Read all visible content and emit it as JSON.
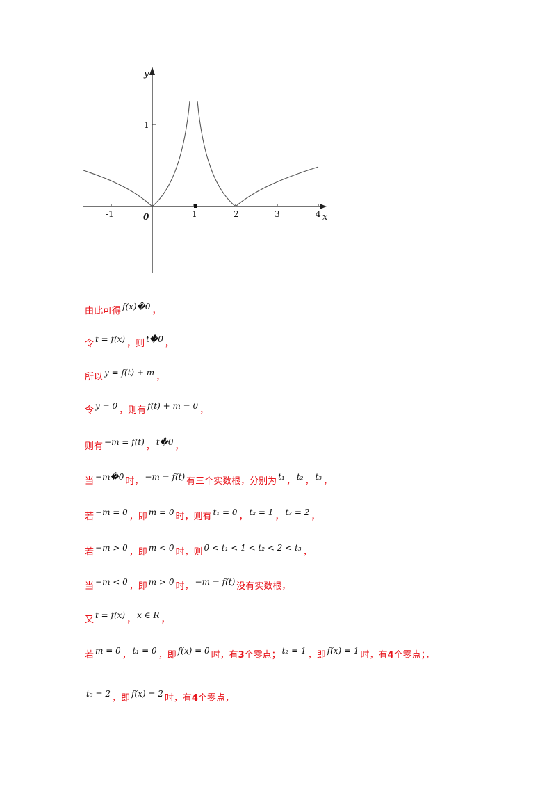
{
  "figure": {
    "x_axis_label": "x",
    "y_axis_label": "y",
    "origin_label": "0",
    "x_tick_labels": [
      "-1",
      "1",
      "2",
      "3",
      "4"
    ],
    "y_tick_labels": [
      "1"
    ],
    "curve_color": "#555555",
    "axis_color": "#222222"
  },
  "lines": [
    [
      {
        "t": "cn",
        "v": "由此可得"
      },
      {
        "t": "math",
        "v": "f(x)�0"
      },
      {
        "t": "cn",
        "v": "，"
      }
    ],
    [
      {
        "t": "cn",
        "v": "令"
      },
      {
        "t": "math",
        "v": "t = f(x)"
      },
      {
        "t": "cn",
        "v": "，则"
      },
      {
        "t": "math",
        "v": "t�0"
      },
      {
        "t": "cn",
        "v": "，"
      }
    ],
    [
      {
        "t": "cn",
        "v": "所以"
      },
      {
        "t": "math",
        "v": "y = f(t) + m"
      },
      {
        "t": "cn",
        "v": "，"
      }
    ],
    [
      {
        "t": "cn",
        "v": "令"
      },
      {
        "t": "math",
        "v": "y = 0"
      },
      {
        "t": "cn",
        "v": "，则有"
      },
      {
        "t": "math",
        "v": "f(t) + m = 0"
      },
      {
        "t": "cn",
        "v": "，"
      }
    ],
    [
      {
        "t": "cn",
        "v": "则有"
      },
      {
        "t": "math",
        "v": "−m = f(t)"
      },
      {
        "t": "cn",
        "v": "，"
      },
      {
        "t": "math",
        "v": "t�0"
      },
      {
        "t": "cn",
        "v": "，"
      }
    ],
    [
      {
        "t": "cn",
        "v": "当"
      },
      {
        "t": "math",
        "v": "−m�0"
      },
      {
        "t": "cn",
        "v": "时，"
      },
      {
        "t": "math",
        "v": "−m = f(t)"
      },
      {
        "t": "cn",
        "v": "有三个实数根，分别为"
      },
      {
        "t": "math",
        "v": "t₁"
      },
      {
        "t": "cn",
        "v": "，"
      },
      {
        "t": "math",
        "v": "t₂"
      },
      {
        "t": "cn",
        "v": "，"
      },
      {
        "t": "math",
        "v": "t₃"
      },
      {
        "t": "cn",
        "v": "，"
      }
    ],
    [
      {
        "t": "cn",
        "v": "若"
      },
      {
        "t": "math",
        "v": "−m = 0"
      },
      {
        "t": "cn",
        "v": "，即"
      },
      {
        "t": "math",
        "v": "m = 0"
      },
      {
        "t": "cn",
        "v": "时，则有"
      },
      {
        "t": "math",
        "v": "t₁ = 0"
      },
      {
        "t": "cn",
        "v": "，"
      },
      {
        "t": "math",
        "v": "t₂ = 1"
      },
      {
        "t": "cn",
        "v": "，"
      },
      {
        "t": "math",
        "v": "t₃ = 2"
      },
      {
        "t": "cn",
        "v": "，"
      }
    ],
    [
      {
        "t": "cn",
        "v": "若"
      },
      {
        "t": "math",
        "v": "−m > 0"
      },
      {
        "t": "cn",
        "v": "，即"
      },
      {
        "t": "math",
        "v": "m < 0"
      },
      {
        "t": "cn",
        "v": "时，则"
      },
      {
        "t": "math",
        "v": "0 < t₁ < 1 < t₂ < 2 < t₃"
      },
      {
        "t": "cn",
        "v": "，"
      }
    ],
    [
      {
        "t": "cn",
        "v": "当"
      },
      {
        "t": "math",
        "v": "−m < 0"
      },
      {
        "t": "cn",
        "v": "，即"
      },
      {
        "t": "math",
        "v": "m > 0"
      },
      {
        "t": "cn",
        "v": "时，"
      },
      {
        "t": "math",
        "v": "−m = f(t)"
      },
      {
        "t": "cn",
        "v": "没有实数根，"
      }
    ],
    [
      {
        "t": "cn",
        "v": "又"
      },
      {
        "t": "math",
        "v": "t = f(x)"
      },
      {
        "t": "cn",
        "v": "，"
      },
      {
        "t": "math",
        "v": "x ∈ R"
      },
      {
        "t": "cn",
        "v": "，"
      }
    ],
    [
      {
        "t": "cn",
        "v": "若"
      },
      {
        "t": "math",
        "v": "m = 0"
      },
      {
        "t": "cn",
        "v": "，"
      },
      {
        "t": "math",
        "v": "t₁ = 0"
      },
      {
        "t": "cn",
        "v": "，即"
      },
      {
        "t": "math",
        "v": "f(x) = 0"
      },
      {
        "t": "cn",
        "v": "时，有 "
      },
      {
        "t": "cnb",
        "v": "3"
      },
      {
        "t": "cn",
        "v": " 个零点；"
      },
      {
        "t": "math",
        "v": "t₂ = 1"
      },
      {
        "t": "cn",
        "v": "，即"
      },
      {
        "t": "math",
        "v": "f(x) = 1"
      },
      {
        "t": "cn",
        "v": "时，有 "
      },
      {
        "t": "cnb",
        "v": "4"
      },
      {
        "t": "cn",
        "v": " 个零点；，"
      }
    ],
    [
      {
        "t": "math",
        "v": "t₃ = 2"
      },
      {
        "t": "cn",
        "v": "，即"
      },
      {
        "t": "math",
        "v": "f(x) = 2"
      },
      {
        "t": "cn",
        "v": "时，有 "
      },
      {
        "t": "cnb",
        "v": "4"
      },
      {
        "t": "cn",
        "v": " 个零点，"
      }
    ]
  ]
}
